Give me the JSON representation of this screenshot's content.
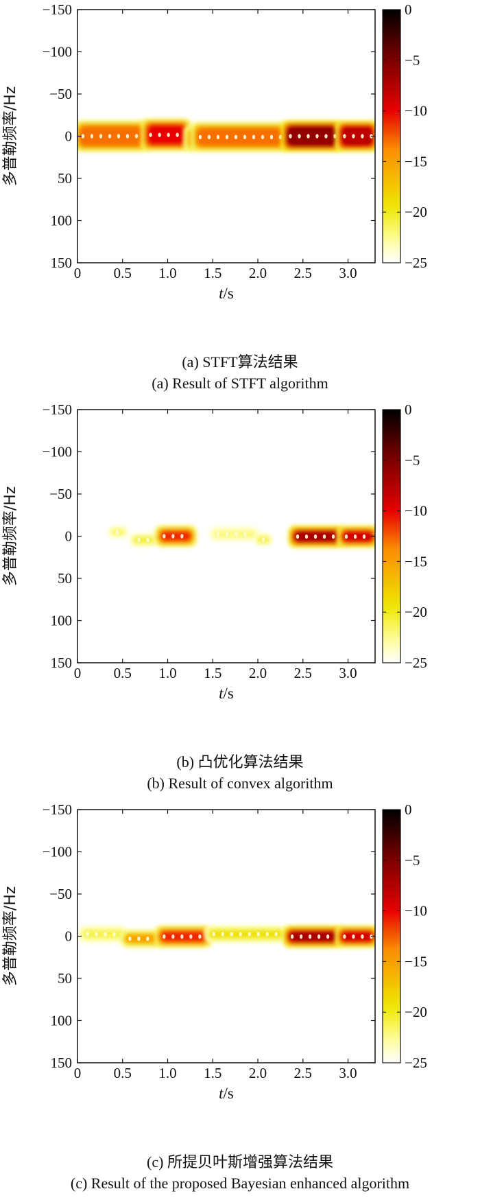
{
  "figure": {
    "panels": [
      {
        "caption_cn": "(a) STFT算法结果",
        "caption_en": "(a) Result of STFT algorithm"
      },
      {
        "caption_cn": "(b) 凸优化算法结果",
        "caption_en": "(b) Result of convex algorithm"
      },
      {
        "caption_cn": "(c) 所提贝叶斯增强算法结果",
        "caption_en": "(c) Result of the proposed Bayesian enhanced algorithm"
      }
    ]
  },
  "chart_data": [
    {
      "type": "heatmap",
      "title": "(a) Result of STFT algorithm",
      "xlabel_var": "t",
      "xlabel_unit": "/s",
      "ylabel": "多普勒频率/Hz",
      "xlim": [
        0,
        3.3
      ],
      "ylim": [
        -150,
        150
      ],
      "y_inverted": true,
      "x_ticks": [
        "0",
        "0.5",
        "1.0",
        "1.5",
        "2.0",
        "2.5",
        "3.0"
      ],
      "y_ticks": [
        "−150",
        "−100",
        "−50",
        "0",
        "50",
        "100",
        "150"
      ],
      "colorbar": {
        "range": [
          -25,
          0
        ],
        "ticks": [
          "0",
          "−5",
          "−10",
          "−15",
          "−20",
          "−25"
        ],
        "colormap": "hot"
      },
      "segments": [
        {
          "t": [
            0.0,
            0.75
          ],
          "f": [
            -14,
            14
          ],
          "level": -13
        },
        {
          "t": [
            0.75,
            1.22
          ],
          "f": [
            -16,
            13
          ],
          "level": -10
        },
        {
          "t": [
            1.22,
            1.3
          ],
          "f": [
            -8,
            14
          ],
          "level": -15
        },
        {
          "t": [
            1.3,
            2.3
          ],
          "f": [
            -12,
            14
          ],
          "level": -13
        },
        {
          "t": [
            2.3,
            2.9
          ],
          "f": [
            -14,
            14
          ],
          "level": -6
        },
        {
          "t": [
            2.9,
            3.3
          ],
          "f": [
            -14,
            14
          ],
          "level": -8
        }
      ]
    },
    {
      "type": "heatmap",
      "title": "(b) Result of convex algorithm",
      "xlabel_var": "t",
      "xlabel_unit": "/s",
      "ylabel": "多普勒频率/Hz",
      "xlim": [
        0,
        3.3
      ],
      "ylim": [
        -150,
        150
      ],
      "y_inverted": true,
      "x_ticks": [
        "0",
        "0.5",
        "1.0",
        "1.5",
        "2.0",
        "2.5",
        "3.0"
      ],
      "y_ticks": [
        "−150",
        "−100",
        "−50",
        "0",
        "50",
        "100",
        "150"
      ],
      "colorbar": {
        "range": [
          -25,
          0
        ],
        "ticks": [
          "0",
          "−5",
          "−10",
          "−15",
          "−20",
          "−25"
        ],
        "colormap": "hot"
      },
      "segments": [
        {
          "t": [
            0.38,
            0.52
          ],
          "f": [
            -8,
            -2
          ],
          "level": -21
        },
        {
          "t": [
            0.62,
            0.85
          ],
          "f": [
            1,
            8
          ],
          "level": -20
        },
        {
          "t": [
            0.9,
            1.28
          ],
          "f": [
            -8,
            8
          ],
          "level": -11
        },
        {
          "t": [
            1.5,
            1.98
          ],
          "f": [
            -7,
            2
          ],
          "level": -22
        },
        {
          "t": [
            2.0,
            2.12
          ],
          "f": [
            1,
            7
          ],
          "level": -20
        },
        {
          "t": [
            2.38,
            2.92
          ],
          "f": [
            -8,
            9
          ],
          "level": -7
        },
        {
          "t": [
            2.92,
            3.3
          ],
          "f": [
            -8,
            9
          ],
          "level": -9
        }
      ]
    },
    {
      "type": "heatmap",
      "title": "(c) Result of the proposed Bayesian enhanced algorithm",
      "xlabel_var": "t",
      "xlabel_unit": "/s",
      "ylabel": "多普勒频率/Hz",
      "xlim": [
        0,
        3.3
      ],
      "ylim": [
        -150,
        150
      ],
      "y_inverted": true,
      "x_ticks": [
        "0",
        "0.5",
        "1.0",
        "1.5",
        "2.0",
        "2.5",
        "3.0"
      ],
      "y_ticks": [
        "−150",
        "−100",
        "−50",
        "0",
        "50",
        "100",
        "150"
      ],
      "colorbar": {
        "range": [
          -25,
          0
        ],
        "ticks": [
          "0",
          "−5",
          "−10",
          "−15",
          "−20",
          "−25"
        ],
        "colormap": "hot"
      },
      "segments": [
        {
          "t": [
            0.05,
            0.52
          ],
          "f": [
            -8,
            3
          ],
          "level": -21
        },
        {
          "t": [
            0.52,
            0.9
          ],
          "f": [
            -3,
            9
          ],
          "level": -15
        },
        {
          "t": [
            0.9,
            1.45
          ],
          "f": [
            -8,
            9
          ],
          "level": -11
        },
        {
          "t": [
            1.45,
            2.28
          ],
          "f": [
            -8,
            3
          ],
          "level": -19
        },
        {
          "t": [
            2.32,
            2.9
          ],
          "f": [
            -8,
            9
          ],
          "level": -7
        },
        {
          "t": [
            2.9,
            3.3
          ],
          "f": [
            -8,
            9
          ],
          "level": -9
        }
      ]
    }
  ]
}
